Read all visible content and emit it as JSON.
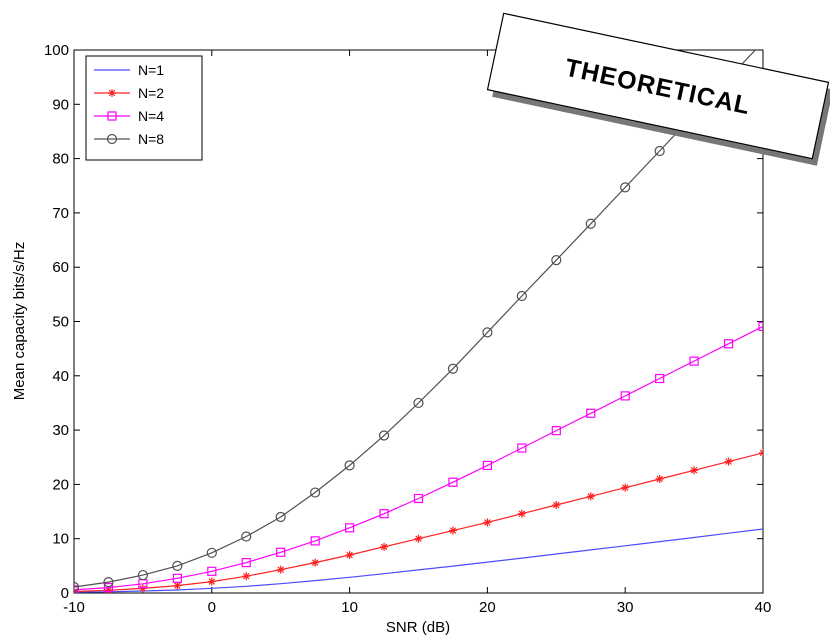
{
  "chart_data": {
    "type": "line",
    "title": "",
    "xlabel": "SNR (dB)",
    "ylabel": "Mean capacity bits/s/Hz",
    "xlim": [
      -10,
      40
    ],
    "ylim": [
      0,
      100
    ],
    "xticks": [
      -10,
      0,
      10,
      20,
      30,
      40
    ],
    "yticks": [
      0,
      10,
      20,
      30,
      40,
      50,
      60,
      70,
      80,
      90,
      100
    ],
    "grid": false,
    "legend_placement": "top-left",
    "x": [
      -10,
      -7.5,
      -5,
      -2.5,
      0,
      2.5,
      5,
      7.5,
      10,
      12.5,
      15,
      17.5,
      20,
      22.5,
      25,
      27.5,
      30,
      32.5,
      35,
      37.5,
      40
    ],
    "series": [
      {
        "name": "N=1",
        "color": "#4c4cff",
        "marker": "none",
        "values": [
          0.14,
          0.23,
          0.37,
          0.56,
          0.86,
          1.24,
          1.72,
          2.28,
          2.9,
          3.56,
          4.25,
          4.96,
          5.69,
          6.43,
          7.18,
          7.94,
          8.7,
          9.46,
          10.23,
          11.01,
          11.78
        ]
      },
      {
        "name": "N=2",
        "color": "#ff2020",
        "marker": "star",
        "values": [
          0.28,
          0.5,
          0.84,
          1.36,
          2.1,
          3.1,
          4.3,
          5.6,
          7.0,
          8.5,
          10.0,
          11.5,
          13.0,
          14.6,
          16.2,
          17.8,
          19.4,
          21.0,
          22.6,
          24.2,
          25.8
        ]
      },
      {
        "name": "N=4",
        "color": "#ff00ff",
        "marker": "square",
        "values": [
          0.58,
          1.0,
          1.7,
          2.7,
          4.0,
          5.6,
          7.5,
          9.6,
          12.0,
          14.6,
          17.4,
          20.4,
          23.5,
          26.7,
          29.9,
          33.1,
          36.3,
          39.5,
          42.7,
          45.9,
          49.1
        ]
      },
      {
        "name": "N=8",
        "color": "#505050",
        "marker": "circle",
        "values": [
          1.1,
          2.0,
          3.3,
          5.0,
          7.4,
          10.4,
          14.0,
          18.5,
          23.5,
          29.0,
          35.0,
          41.3,
          48.0,
          54.7,
          61.3,
          68.0,
          74.7,
          81.4,
          88.1,
          94.8,
          101.5
        ]
      }
    ],
    "annotations": [
      {
        "text": "THEORETICAL",
        "style": "rotated stamp box with drop shadow"
      }
    ]
  }
}
